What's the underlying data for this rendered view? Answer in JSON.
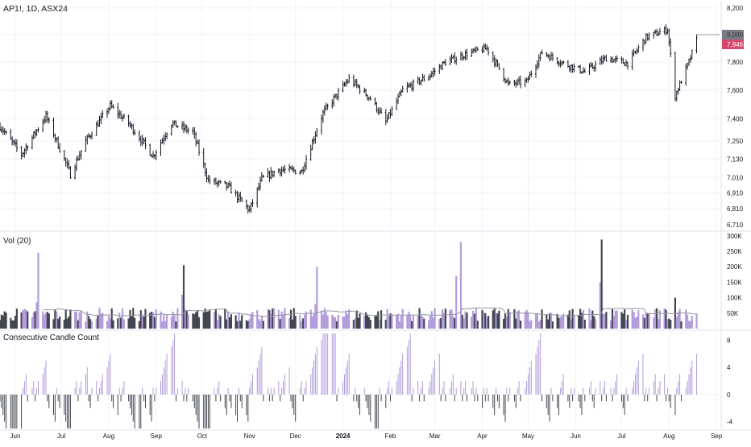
{
  "header": {
    "symbol_line": "AP1!, 1D, ASX24"
  },
  "price_pane": {
    "last_price_tag": "8,000",
    "last_close_tag": "7,946",
    "tag_colors": {
      "last_price": "#787b86",
      "last_close": "#d4486c"
    },
    "y_ticks": [
      "8,200",
      "8,000",
      "7,800",
      "7,600",
      "7,400",
      "7,250",
      "7,130",
      "7,010",
      "6,910",
      "6,810",
      "6,710"
    ],
    "y_tick_values": [
      8200,
      8000,
      7800,
      7600,
      7400,
      7250,
      7130,
      7010,
      6910,
      6810,
      6710
    ],
    "scale": "log"
  },
  "volume_pane": {
    "title": "Vol (20)",
    "y_ticks": [
      "300K",
      "250K",
      "200K",
      "150K",
      "100K",
      "50K"
    ],
    "y_tick_values": [
      300000,
      250000,
      200000,
      150000,
      100000,
      50000
    ]
  },
  "ccc_pane": {
    "title": "Consecutive Candle Count",
    "y_ticks": [
      "8",
      "4",
      "0",
      "-4"
    ],
    "y_tick_values": [
      8,
      4,
      0,
      -4
    ]
  },
  "time_axis": {
    "labels": [
      "Jun",
      "Jul",
      "Aug",
      "Sep",
      "Oct",
      "Nov",
      "Dec",
      "2024",
      "Feb",
      "Mar",
      "Apr",
      "May",
      "Jun",
      "Jul",
      "Aug",
      "Sep"
    ],
    "bold_labels": [
      "2024"
    ]
  },
  "colors": {
    "up_candle": "#b39ddb",
    "down_candle": "#434651",
    "bar_wick": "#131722",
    "volume_ma": "#9598a1",
    "grid": "#f0f3fa",
    "axis_text": "#131722"
  },
  "chart_data": {
    "type": "candlestick",
    "interval": "1D",
    "price_scale": "log",
    "price_ylim": [
      6680,
      8230
    ],
    "x_range": [
      "2023-05-22",
      "2024-09-03"
    ],
    "anchors": [
      [
        "2023-05-22",
        7350
      ],
      [
        "2023-06-05",
        7160
      ],
      [
        "2023-06-21",
        7420
      ],
      [
        "2023-07-07",
        7030
      ],
      [
        "2023-07-17",
        7250
      ],
      [
        "2023-08-02",
        7490
      ],
      [
        "2023-08-14",
        7370
      ],
      [
        "2023-08-30",
        7150
      ],
      [
        "2023-09-11",
        7370
      ],
      [
        "2023-09-25",
        7310
      ],
      [
        "2023-10-05",
        6990
      ],
      [
        "2023-10-18",
        6950
      ],
      [
        "2023-11-01",
        6800
      ],
      [
        "2023-11-09",
        7000
      ],
      [
        "2023-11-20",
        7060
      ],
      [
        "2023-12-05",
        7050
      ],
      [
        "2023-12-19",
        7440
      ],
      [
        "2024-01-05",
        7680
      ],
      [
        "2024-01-19",
        7540
      ],
      [
        "2024-01-29",
        7380
      ],
      [
        "2024-02-09",
        7600
      ],
      [
        "2024-02-26",
        7700
      ],
      [
        "2024-03-08",
        7800
      ],
      [
        "2024-03-22",
        7860
      ],
      [
        "2024-04-04",
        7900
      ],
      [
        "2024-04-18",
        7640
      ],
      [
        "2024-04-30",
        7660
      ],
      [
        "2024-05-10",
        7870
      ],
      [
        "2024-05-24",
        7790
      ],
      [
        "2024-06-07",
        7730
      ],
      [
        "2024-06-21",
        7830
      ],
      [
        "2024-07-05",
        7790
      ],
      [
        "2024-07-17",
        7980
      ],
      [
        "2024-07-31",
        8040
      ],
      [
        "2024-08-05",
        7560
      ],
      [
        "2024-08-14",
        7800
      ],
      [
        "2024-08-19",
        7960
      ]
    ],
    "volume_spikes": [
      [
        "2023-06-16",
        245000
      ],
      [
        "2023-06-15",
        85000
      ],
      [
        "2023-09-19",
        205000
      ],
      [
        "2023-09-18",
        110000
      ],
      [
        "2023-12-15",
        200000
      ],
      [
        "2023-12-14",
        80000
      ],
      [
        "2024-03-18",
        280000
      ],
      [
        "2024-03-15",
        170000
      ],
      [
        "2024-06-18",
        288000
      ],
      [
        "2024-06-17",
        150000
      ],
      [
        "2024-08-05",
        100000
      ]
    ],
    "typical_volume": 45000,
    "volume_ma_length": 20,
    "consecutive_count_range": [
      -5,
      9
    ]
  }
}
